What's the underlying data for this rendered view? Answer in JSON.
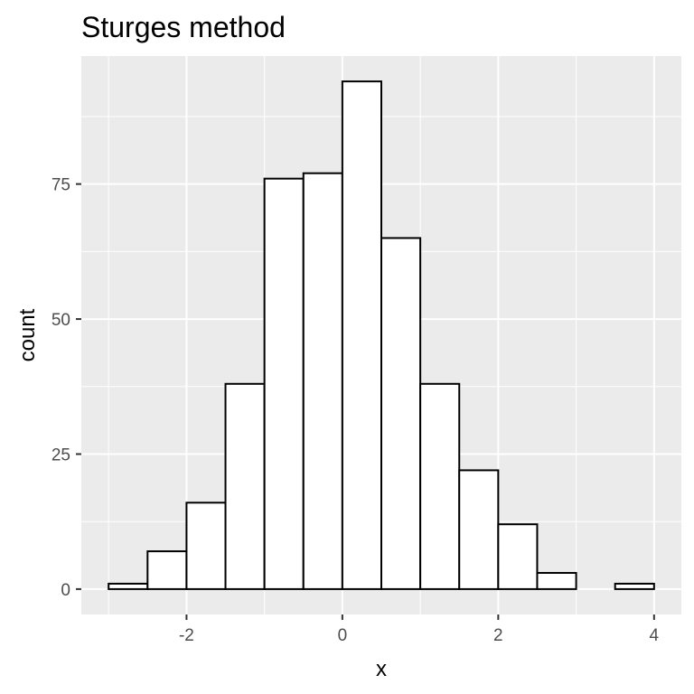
{
  "chart_data": {
    "type": "bar",
    "title": "Sturges method",
    "xlabel": "x",
    "ylabel": "count",
    "bin_width": 0.5,
    "bins": [
      {
        "x_start": -3.0,
        "x_end": -2.5,
        "count": 1
      },
      {
        "x_start": -2.5,
        "x_end": -2.0,
        "count": 7
      },
      {
        "x_start": -2.0,
        "x_end": -1.5,
        "count": 16
      },
      {
        "x_start": -1.5,
        "x_end": -1.0,
        "count": 38
      },
      {
        "x_start": -1.0,
        "x_end": -0.5,
        "count": 76
      },
      {
        "x_start": -0.5,
        "x_end": 0.0,
        "count": 77
      },
      {
        "x_start": 0.0,
        "x_end": 0.5,
        "count": 94
      },
      {
        "x_start": 0.5,
        "x_end": 1.0,
        "count": 65
      },
      {
        "x_start": 1.0,
        "x_end": 1.5,
        "count": 38
      },
      {
        "x_start": 1.5,
        "x_end": 2.0,
        "count": 22
      },
      {
        "x_start": 2.0,
        "x_end": 2.5,
        "count": 12
      },
      {
        "x_start": 2.5,
        "x_end": 3.0,
        "count": 3
      },
      {
        "x_start": 3.0,
        "x_end": 3.5,
        "count": 0
      },
      {
        "x_start": 3.5,
        "x_end": 4.0,
        "count": 1
      }
    ],
    "xlim": [
      -3.35,
      4.35
    ],
    "ylim": [
      -4.7,
      98.7
    ],
    "x_ticks": [
      -2,
      0,
      2,
      4
    ],
    "x_tick_labels": [
      "-2",
      "0",
      "2",
      "4"
    ],
    "y_ticks": [
      0,
      25,
      50,
      75
    ],
    "y_tick_labels": [
      "0",
      "25",
      "50",
      "75"
    ],
    "grid": true,
    "legend": "none",
    "colors": {
      "panel_background": "#ebebeb",
      "grid_line": "#ffffff",
      "bar_fill": "#ffffff",
      "bar_outline": "#000000",
      "tick_mark": "#333333",
      "tick_label": "#4d4d4d"
    }
  }
}
